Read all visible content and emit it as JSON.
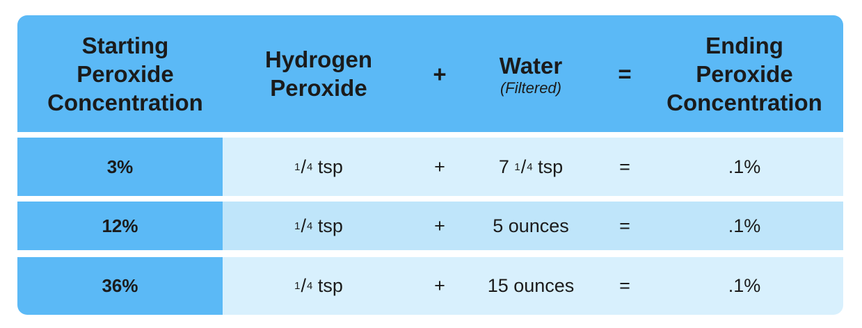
{
  "colors": {
    "header": "#5bb9f6",
    "row_light": "#d8f0fd",
    "row_alt": "#bfe5fa"
  },
  "header": {
    "starting": [
      "Starting",
      "Peroxide",
      "Concentration"
    ],
    "hydrogen": [
      "Hydrogen",
      "Peroxide"
    ],
    "plus": "+",
    "water": "Water",
    "water_note": "(Filtered)",
    "equals": "=",
    "ending": [
      "Ending",
      "Peroxide",
      "Concentration"
    ]
  },
  "rows": [
    {
      "starting": "3%",
      "peroxide": {
        "num": "1",
        "den": "4",
        "unit": "tsp"
      },
      "plus": "+",
      "water": {
        "whole": "7",
        "num": "1",
        "den": "4",
        "unit": "tsp"
      },
      "equals": "=",
      "ending": ".1%"
    },
    {
      "starting": "12%",
      "peroxide": {
        "num": "1",
        "den": "4",
        "unit": "tsp"
      },
      "plus": "+",
      "water": {
        "text": "5 ounces"
      },
      "equals": "=",
      "ending": ".1%"
    },
    {
      "starting": "36%",
      "peroxide": {
        "num": "1",
        "den": "4",
        "unit": "tsp"
      },
      "plus": "+",
      "water": {
        "text": "15 ounces"
      },
      "equals": "=",
      "ending": ".1%"
    }
  ]
}
